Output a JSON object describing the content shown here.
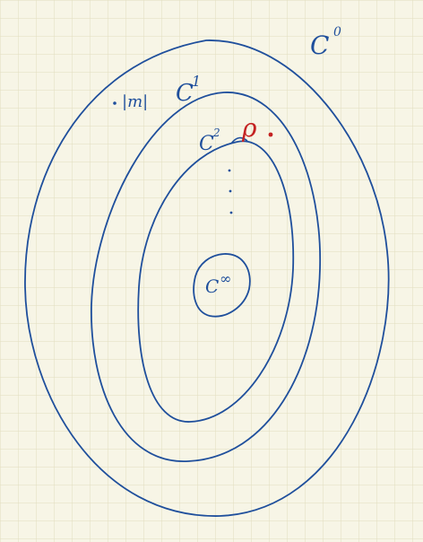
{
  "grid": {
    "line_color": "#e2ddbf",
    "paper_color": "#f7f5e6"
  },
  "ink": {
    "blue": "#1f4f9c",
    "red": "#c42222"
  },
  "labels": {
    "c0": "C",
    "c0_sup": "0",
    "c1": "C",
    "c1_sup": "1",
    "c2": "C",
    "c2_sup": "2",
    "cinf": "C",
    "cinf_sup": "∞",
    "m": "|m|",
    "rho": "ρ",
    "dots": "⋮"
  }
}
